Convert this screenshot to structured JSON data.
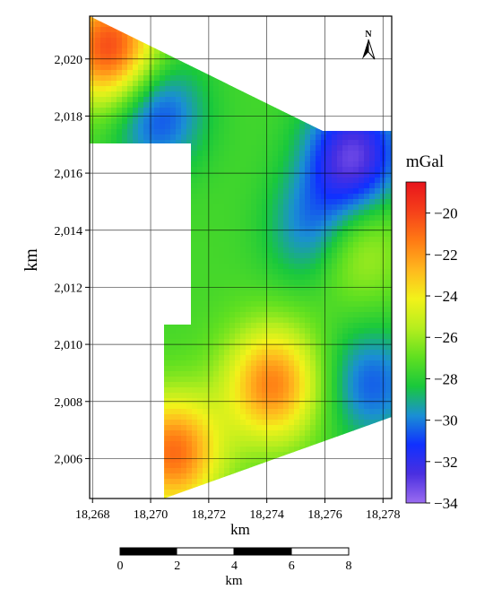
{
  "map": {
    "x_axis": {
      "label": "km",
      "ticks": [
        "18,268",
        "18,270",
        "18,272",
        "18,274",
        "18,276",
        "18,278"
      ]
    },
    "y_axis": {
      "label": "km",
      "ticks": [
        "2,006",
        "2,008",
        "2,010",
        "2,012",
        "2,014",
        "2,016",
        "2,018",
        "2,020"
      ]
    },
    "north_arrow_label": "N",
    "anomaly_field": {
      "background_level": -27.5,
      "features": [
        {
          "kind": "high",
          "value": -21.5,
          "x": 18274.2,
          "y": 2008.6
        },
        {
          "kind": "high",
          "value": -21.0,
          "x": 18270.8,
          "y": 2006.2
        },
        {
          "kind": "high",
          "value": -20.0,
          "x": 18268.6,
          "y": 2020.4
        },
        {
          "kind": "high",
          "value": -24.5,
          "x": 18276.9,
          "y": 2013.5
        },
        {
          "kind": "low",
          "value": -33.0,
          "x": 18277.0,
          "y": 2016.6
        },
        {
          "kind": "low",
          "value": -31.0,
          "x": 18275.8,
          "y": 2014.0
        },
        {
          "kind": "low",
          "value": -31.0,
          "x": 18270.2,
          "y": 2018.1
        },
        {
          "kind": "low",
          "value": -30.5,
          "x": 18277.6,
          "y": 2008.6
        }
      ]
    }
  },
  "colorbar": {
    "unit": "mGal",
    "tick_labels": [
      "-20",
      "-22",
      "-24",
      "-26",
      "-28",
      "-30",
      "-32",
      "-34"
    ],
    "range": [
      -34,
      -18.5
    ],
    "colors": [
      "#9b6cf0",
      "#4a2fe0",
      "#1030ff",
      "#1a8fd4",
      "#19c83c",
      "#60e020",
      "#b6ee1e",
      "#f2f21a",
      "#ffb81e",
      "#ff7a14",
      "#f5401a",
      "#e8141c"
    ]
  },
  "scale_bar": {
    "tick_labels": [
      "0",
      "2",
      "4",
      "6",
      "8"
    ],
    "unit": "km"
  }
}
